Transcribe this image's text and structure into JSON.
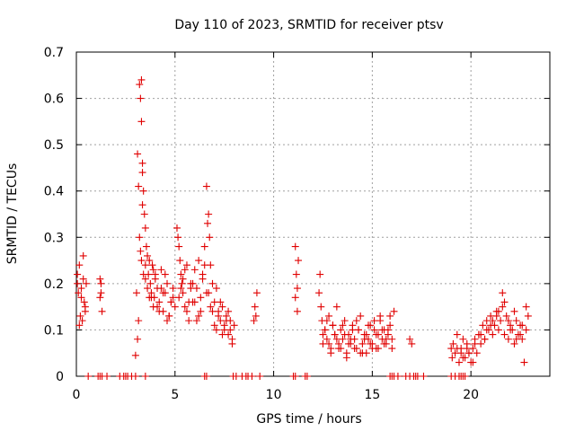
{
  "chart_data": {
    "type": "scatter",
    "title": "Day 110 of 2023, SRMTID for receiver ptsv",
    "xlabel": "GPS time / hours",
    "ylabel": "SRMTID / TECUs",
    "xlim": [
      0,
      24
    ],
    "ylim": [
      0,
      0.7
    ],
    "xticks": [
      0,
      5,
      10,
      15,
      20
    ],
    "yticks": [
      0,
      0.1,
      0.2,
      0.3,
      0.4,
      0.5,
      0.6,
      0.7
    ],
    "xtick_labels": [
      "0",
      "5",
      "10",
      "15",
      "20"
    ],
    "ytick_labels": [
      "0",
      "0.1",
      "0.2",
      "0.3",
      "0.4",
      "0.5",
      "0.6",
      "0.7"
    ],
    "grid": true,
    "marker": "+",
    "marker_color": "#e00000",
    "series": [
      {
        "name": "SRMTID",
        "x": [
          0.05,
          0.1,
          0.15,
          0.2,
          0.25,
          0.3,
          0.35,
          0.4,
          0.45,
          0.5,
          0.05,
          0.15,
          0.25,
          0.35,
          0.45,
          1.2,
          1.25,
          1.3,
          1.2,
          1.25,
          3.0,
          3.05,
          3.1,
          3.15,
          3.2,
          3.25,
          3.3,
          3.3,
          3.35,
          3.35,
          3.4,
          3.45,
          3.5,
          3.5,
          3.55,
          3.6,
          3.65,
          3.7,
          3.75,
          3.8,
          3.85,
          3.9,
          3.95,
          4.0,
          4.1,
          4.2,
          4.3,
          4.4,
          4.5,
          4.6,
          4.7,
          4.8,
          4.9,
          5.0,
          3.2,
          3.4,
          3.6,
          3.8,
          4.0,
          4.2,
          4.4,
          4.6,
          4.8,
          3.3,
          3.5,
          3.7,
          3.9,
          4.1,
          4.3,
          4.5,
          4.7,
          4.9,
          3.1,
          3.15,
          3.25,
          3.35,
          5.1,
          5.15,
          5.2,
          5.25,
          5.3,
          5.35,
          5.4,
          5.5,
          5.6,
          5.7,
          5.8,
          5.9,
          6.0,
          6.1,
          6.2,
          6.3,
          6.4,
          6.5,
          6.6,
          6.65,
          6.7,
          6.75,
          6.8,
          6.9,
          7.0,
          7.1,
          7.2,
          7.3,
          7.4,
          7.5,
          7.6,
          7.7,
          7.8,
          7.9,
          8.0,
          5.2,
          5.4,
          5.6,
          5.8,
          6.0,
          6.2,
          6.4,
          6.6,
          6.8,
          7.0,
          7.2,
          7.4,
          7.6,
          7.8,
          5.3,
          5.5,
          5.7,
          5.9,
          6.1,
          6.3,
          6.5,
          6.7,
          6.9,
          7.1,
          7.3,
          7.5,
          7.7,
          7.9,
          9.0,
          9.05,
          9.1,
          9.15,
          11.1,
          11.15,
          11.2,
          11.25,
          11.1,
          11.2,
          12.3,
          12.35,
          12.4,
          12.45,
          12.5,
          12.6,
          12.7,
          12.8,
          12.9,
          13.0,
          13.1,
          13.2,
          13.3,
          13.4,
          13.5,
          13.6,
          13.7,
          13.8,
          13.9,
          14.0,
          14.1,
          14.2,
          14.3,
          14.4,
          14.5,
          14.6,
          14.7,
          14.8,
          14.9,
          15.0,
          15.1,
          15.2,
          15.3,
          15.4,
          15.5,
          15.6,
          15.7,
          15.8,
          15.9,
          16.0,
          16.1,
          12.5,
          12.7,
          12.9,
          13.1,
          13.3,
          13.5,
          13.7,
          13.9,
          14.1,
          14.3,
          14.5,
          14.7,
          14.9,
          15.1,
          15.3,
          15.5,
          15.7,
          15.9,
          12.6,
          12.8,
          13.0,
          13.2,
          13.4,
          13.6,
          13.8,
          14.0,
          14.2,
          14.4,
          14.6,
          14.8,
          15.0,
          15.2,
          15.4,
          15.6,
          15.8,
          16.0,
          16.9,
          17.0,
          19.0,
          19.05,
          19.1,
          19.2,
          19.3,
          19.4,
          19.5,
          19.6,
          19.7,
          19.8,
          19.9,
          20.0,
          20.1,
          20.2,
          20.3,
          20.4,
          20.5,
          20.6,
          20.7,
          20.8,
          20.9,
          21.0,
          21.1,
          21.2,
          21.3,
          21.4,
          21.5,
          21.6,
          21.7,
          21.8,
          21.9,
          22.0,
          22.1,
          22.2,
          22.3,
          22.4,
          22.5,
          22.6,
          22.7,
          22.8,
          22.9,
          19.3,
          19.6,
          19.9,
          20.2,
          20.5,
          20.8,
          21.1,
          21.4,
          21.7,
          22.0,
          22.3,
          22.6,
          19.5,
          19.8,
          20.1,
          20.4,
          20.7,
          21.0,
          21.3,
          21.6,
          21.9,
          22.2,
          22.5,
          22.8,
          0.6,
          1.1,
          1.2,
          1.3,
          1.55,
          2.2,
          2.4,
          2.5,
          2.6,
          2.8,
          3.0,
          3.5,
          6.5,
          6.6,
          7.95,
          8.1,
          8.4,
          8.6,
          8.7,
          8.9,
          9.3,
          11.0,
          11.1,
          11.6,
          11.7,
          15.9,
          16.0,
          16.1,
          16.3,
          16.7,
          16.9,
          17.1,
          17.2,
          17.3,
          17.6,
          19.0,
          19.2,
          19.4,
          19.5,
          19.6,
          19.7
        ],
        "y": [
          0.2,
          0.18,
          0.24,
          0.13,
          0.19,
          0.12,
          0.21,
          0.16,
          0.14,
          0.2,
          0.22,
          0.11,
          0.17,
          0.26,
          0.15,
          0.21,
          0.18,
          0.14,
          0.17,
          0.2,
          0.045,
          0.18,
          0.48,
          0.41,
          0.63,
          0.6,
          0.64,
          0.55,
          0.46,
          0.37,
          0.4,
          0.35,
          0.24,
          0.32,
          0.28,
          0.26,
          0.22,
          0.25,
          0.2,
          0.18,
          0.24,
          0.15,
          0.17,
          0.22,
          0.19,
          0.16,
          0.23,
          0.14,
          0.18,
          0.2,
          0.13,
          0.16,
          0.19,
          0.15,
          0.3,
          0.22,
          0.19,
          0.17,
          0.21,
          0.14,
          0.18,
          0.12,
          0.16,
          0.25,
          0.21,
          0.17,
          0.23,
          0.15,
          0.19,
          0.22,
          0.13,
          0.17,
          0.08,
          0.12,
          0.27,
          0.44,
          0.32,
          0.3,
          0.28,
          0.25,
          0.22,
          0.2,
          0.18,
          0.15,
          0.24,
          0.12,
          0.2,
          0.16,
          0.23,
          0.19,
          0.25,
          0.14,
          0.21,
          0.28,
          0.41,
          0.33,
          0.35,
          0.3,
          0.24,
          0.2,
          0.16,
          0.19,
          0.14,
          0.12,
          0.15,
          0.1,
          0.13,
          0.09,
          0.12,
          0.08,
          0.11,
          0.17,
          0.21,
          0.14,
          0.19,
          0.16,
          0.13,
          0.22,
          0.18,
          0.15,
          0.11,
          0.13,
          0.09,
          0.12,
          0.1,
          0.19,
          0.23,
          0.16,
          0.2,
          0.12,
          0.17,
          0.24,
          0.18,
          0.14,
          0.1,
          0.16,
          0.11,
          0.14,
          0.07,
          0.12,
          0.15,
          0.13,
          0.18,
          0.28,
          0.22,
          0.14,
          0.25,
          0.17,
          0.19,
          0.18,
          0.22,
          0.15,
          0.12,
          0.09,
          0.1,
          0.08,
          0.13,
          0.06,
          0.11,
          0.09,
          0.15,
          0.07,
          0.1,
          0.08,
          0.12,
          0.05,
          0.09,
          0.07,
          0.11,
          0.08,
          0.06,
          0.1,
          0.13,
          0.07,
          0.09,
          0.05,
          0.08,
          0.11,
          0.07,
          0.1,
          0.06,
          0.09,
          0.12,
          0.08,
          0.1,
          0.07,
          0.09,
          0.11,
          0.08,
          0.14,
          0.07,
          0.12,
          0.05,
          0.09,
          0.06,
          0.11,
          0.04,
          0.08,
          0.06,
          0.1,
          0.05,
          0.09,
          0.07,
          0.12,
          0.06,
          0.1,
          0.08,
          0.13,
          0.1,
          0.07,
          0.11,
          0.08,
          0.06,
          0.09,
          0.07,
          0.1,
          0.12,
          0.05,
          0.08,
          0.11,
          0.06,
          0.09,
          0.13,
          0.07,
          0.1,
          0.06,
          0.08,
          0.07,
          0.06,
          0.04,
          0.07,
          0.05,
          0.09,
          0.03,
          0.06,
          0.08,
          0.04,
          0.07,
          0.05,
          0.03,
          0.06,
          0.08,
          0.05,
          0.09,
          0.07,
          0.11,
          0.08,
          0.12,
          0.1,
          0.13,
          0.09,
          0.11,
          0.14,
          0.1,
          0.12,
          0.15,
          0.09,
          0.13,
          0.08,
          0.11,
          0.1,
          0.07,
          0.12,
          0.09,
          0.11,
          0.08,
          0.03,
          0.1,
          0.13,
          0.06,
          0.04,
          0.05,
          0.07,
          0.09,
          0.1,
          0.12,
          0.14,
          0.16,
          0.1,
          0.08,
          0.11,
          0.05,
          0.06,
          0.03,
          0.09,
          0.08,
          0.11,
          0.13,
          0.18,
          0.12,
          0.14,
          0.09,
          0.15,
          0,
          0,
          0,
          0,
          0,
          0,
          0,
          0,
          0,
          0,
          0,
          0,
          0,
          0,
          0,
          0,
          0,
          0,
          0,
          0,
          0,
          0,
          0,
          0,
          0,
          0,
          0,
          0,
          0,
          0,
          0,
          0,
          0,
          0,
          0,
          0,
          0,
          0,
          0,
          0,
          0
        ]
      }
    ]
  }
}
